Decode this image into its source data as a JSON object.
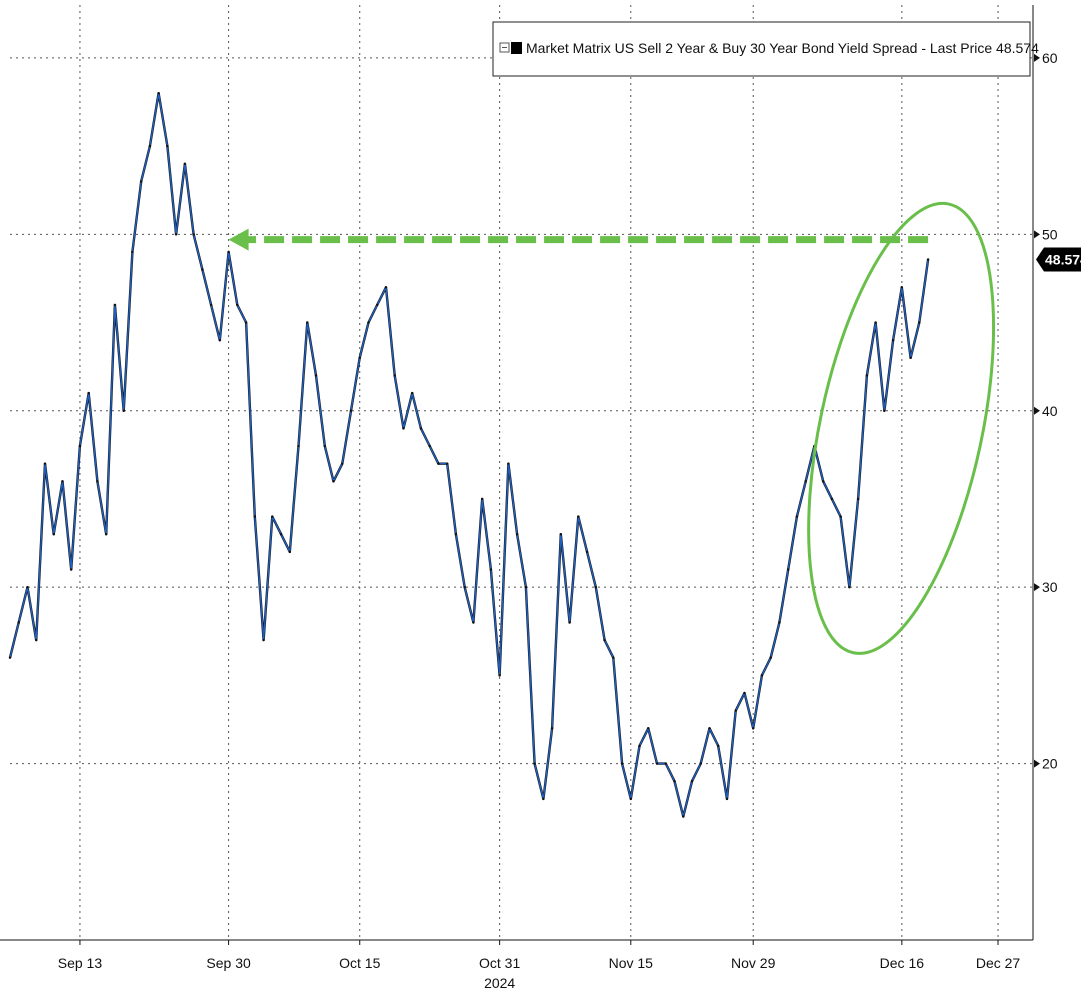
{
  "chart_data": {
    "type": "line",
    "legend": {
      "label": "Market Matrix US Sell 2 Year & Buy 30 Year Bond Yield Spread - Last Price 48.574",
      "placement": "top-right"
    },
    "last_price": {
      "value": 48.574,
      "label": "48.574"
    },
    "y_axis": {
      "side": "right",
      "range": [
        10,
        63
      ],
      "ticks": [
        {
          "value": 20,
          "label": "20"
        },
        {
          "value": 30,
          "label": "30"
        },
        {
          "value": 40,
          "label": "40"
        },
        {
          "value": 50,
          "label": "50"
        },
        {
          "value": 60,
          "label": "60"
        }
      ]
    },
    "x_axis": {
      "type": "date",
      "range": [
        "2024-09-05",
        "2024-12-31"
      ],
      "ticks": [
        {
          "value": "2024-09-13",
          "label": "Sep 13"
        },
        {
          "value": "2024-09-30",
          "label": "Sep 30"
        },
        {
          "value": "2024-10-15",
          "label": "Oct 15"
        },
        {
          "value": "2024-10-31",
          "label": "Oct 31"
        },
        {
          "value": "2024-11-15",
          "label": "Nov 15"
        },
        {
          "value": "2024-11-29",
          "label": "Nov 29"
        },
        {
          "value": "2024-12-16",
          "label": "Dec 16"
        },
        {
          "value": "2024-12-27",
          "label": "Dec 27"
        }
      ],
      "year_label": "2024",
      "year_label_under": "2024-10-31"
    },
    "grid": true,
    "series": [
      {
        "color": "#1f5fbf",
        "points": [
          [
            "2024-09-05",
            26
          ],
          [
            "2024-09-06",
            28
          ],
          [
            "2024-09-07",
            30
          ],
          [
            "2024-09-08",
            27
          ],
          [
            "2024-09-09",
            37
          ],
          [
            "2024-09-10",
            33
          ],
          [
            "2024-09-11",
            36
          ],
          [
            "2024-09-12",
            31
          ],
          [
            "2024-09-13",
            38
          ],
          [
            "2024-09-14",
            41
          ],
          [
            "2024-09-15",
            36
          ],
          [
            "2024-09-16",
            33
          ],
          [
            "2024-09-17",
            46
          ],
          [
            "2024-09-18",
            40
          ],
          [
            "2024-09-19",
            49
          ],
          [
            "2024-09-20",
            53
          ],
          [
            "2024-09-21",
            55
          ],
          [
            "2024-09-22",
            58
          ],
          [
            "2024-09-23",
            55
          ],
          [
            "2024-09-24",
            50
          ],
          [
            "2024-09-25",
            54
          ],
          [
            "2024-09-26",
            50
          ],
          [
            "2024-09-27",
            48
          ],
          [
            "2024-09-28",
            46
          ],
          [
            "2024-09-29",
            44
          ],
          [
            "2024-09-30",
            49
          ],
          [
            "2024-10-01",
            46
          ],
          [
            "2024-10-02",
            45
          ],
          [
            "2024-10-03",
            34
          ],
          [
            "2024-10-04",
            27
          ],
          [
            "2024-10-05",
            34
          ],
          [
            "2024-10-06",
            33
          ],
          [
            "2024-10-07",
            32
          ],
          [
            "2024-10-08",
            38
          ],
          [
            "2024-10-09",
            45
          ],
          [
            "2024-10-10",
            42
          ],
          [
            "2024-10-11",
            38
          ],
          [
            "2024-10-12",
            36
          ],
          [
            "2024-10-13",
            37
          ],
          [
            "2024-10-14",
            40
          ],
          [
            "2024-10-15",
            43
          ],
          [
            "2024-10-16",
            45
          ],
          [
            "2024-10-17",
            46
          ],
          [
            "2024-10-18",
            47
          ],
          [
            "2024-10-19",
            42
          ],
          [
            "2024-10-20",
            39
          ],
          [
            "2024-10-21",
            41
          ],
          [
            "2024-10-22",
            39
          ],
          [
            "2024-10-23",
            38
          ],
          [
            "2024-10-24",
            37
          ],
          [
            "2024-10-25",
            37
          ],
          [
            "2024-10-26",
            33
          ],
          [
            "2024-10-27",
            30
          ],
          [
            "2024-10-28",
            28
          ],
          [
            "2024-10-29",
            35
          ],
          [
            "2024-10-30",
            31
          ],
          [
            "2024-10-31",
            25
          ],
          [
            "2024-11-01",
            37
          ],
          [
            "2024-11-02",
            33
          ],
          [
            "2024-11-03",
            30
          ],
          [
            "2024-11-04",
            20
          ],
          [
            "2024-11-05",
            18
          ],
          [
            "2024-11-06",
            22
          ],
          [
            "2024-11-07",
            33
          ],
          [
            "2024-11-08",
            28
          ],
          [
            "2024-11-09",
            34
          ],
          [
            "2024-11-10",
            32
          ],
          [
            "2024-11-11",
            30
          ],
          [
            "2024-11-12",
            27
          ],
          [
            "2024-11-13",
            26
          ],
          [
            "2024-11-14",
            20
          ],
          [
            "2024-11-15",
            18
          ],
          [
            "2024-11-16",
            21
          ],
          [
            "2024-11-17",
            22
          ],
          [
            "2024-11-18",
            20
          ],
          [
            "2024-11-19",
            20
          ],
          [
            "2024-11-20",
            19
          ],
          [
            "2024-11-21",
            17
          ],
          [
            "2024-11-22",
            19
          ],
          [
            "2024-11-23",
            20
          ],
          [
            "2024-11-24",
            22
          ],
          [
            "2024-11-25",
            21
          ],
          [
            "2024-11-26",
            18
          ],
          [
            "2024-11-27",
            23
          ],
          [
            "2024-11-28",
            24
          ],
          [
            "2024-11-29",
            22
          ],
          [
            "2024-11-30",
            25
          ],
          [
            "2024-12-01",
            26
          ],
          [
            "2024-12-02",
            28
          ],
          [
            "2024-12-03",
            31
          ],
          [
            "2024-12-04",
            34
          ],
          [
            "2024-12-05",
            36
          ],
          [
            "2024-12-06",
            38
          ],
          [
            "2024-12-07",
            36
          ],
          [
            "2024-12-08",
            35
          ],
          [
            "2024-12-09",
            34
          ],
          [
            "2024-12-10",
            30
          ],
          [
            "2024-12-11",
            35
          ],
          [
            "2024-12-12",
            42
          ],
          [
            "2024-12-13",
            45
          ],
          [
            "2024-12-14",
            40
          ],
          [
            "2024-12-15",
            44
          ],
          [
            "2024-12-16",
            47
          ],
          [
            "2024-12-17",
            43
          ],
          [
            "2024-12-18",
            45
          ],
          [
            "2024-12-19",
            48.574
          ]
        ]
      }
    ],
    "annotations": [
      {
        "type": "dashed-arrow",
        "color": "#6abf4b",
        "from_date": "2024-12-19",
        "to_date": "2024-09-30",
        "y": 49.7
      },
      {
        "type": "ellipse",
        "color": "#6abf4b",
        "around_dates": [
          "2024-12-11",
          "2024-12-19"
        ],
        "y_range": [
          26,
          52
        ]
      }
    ]
  }
}
